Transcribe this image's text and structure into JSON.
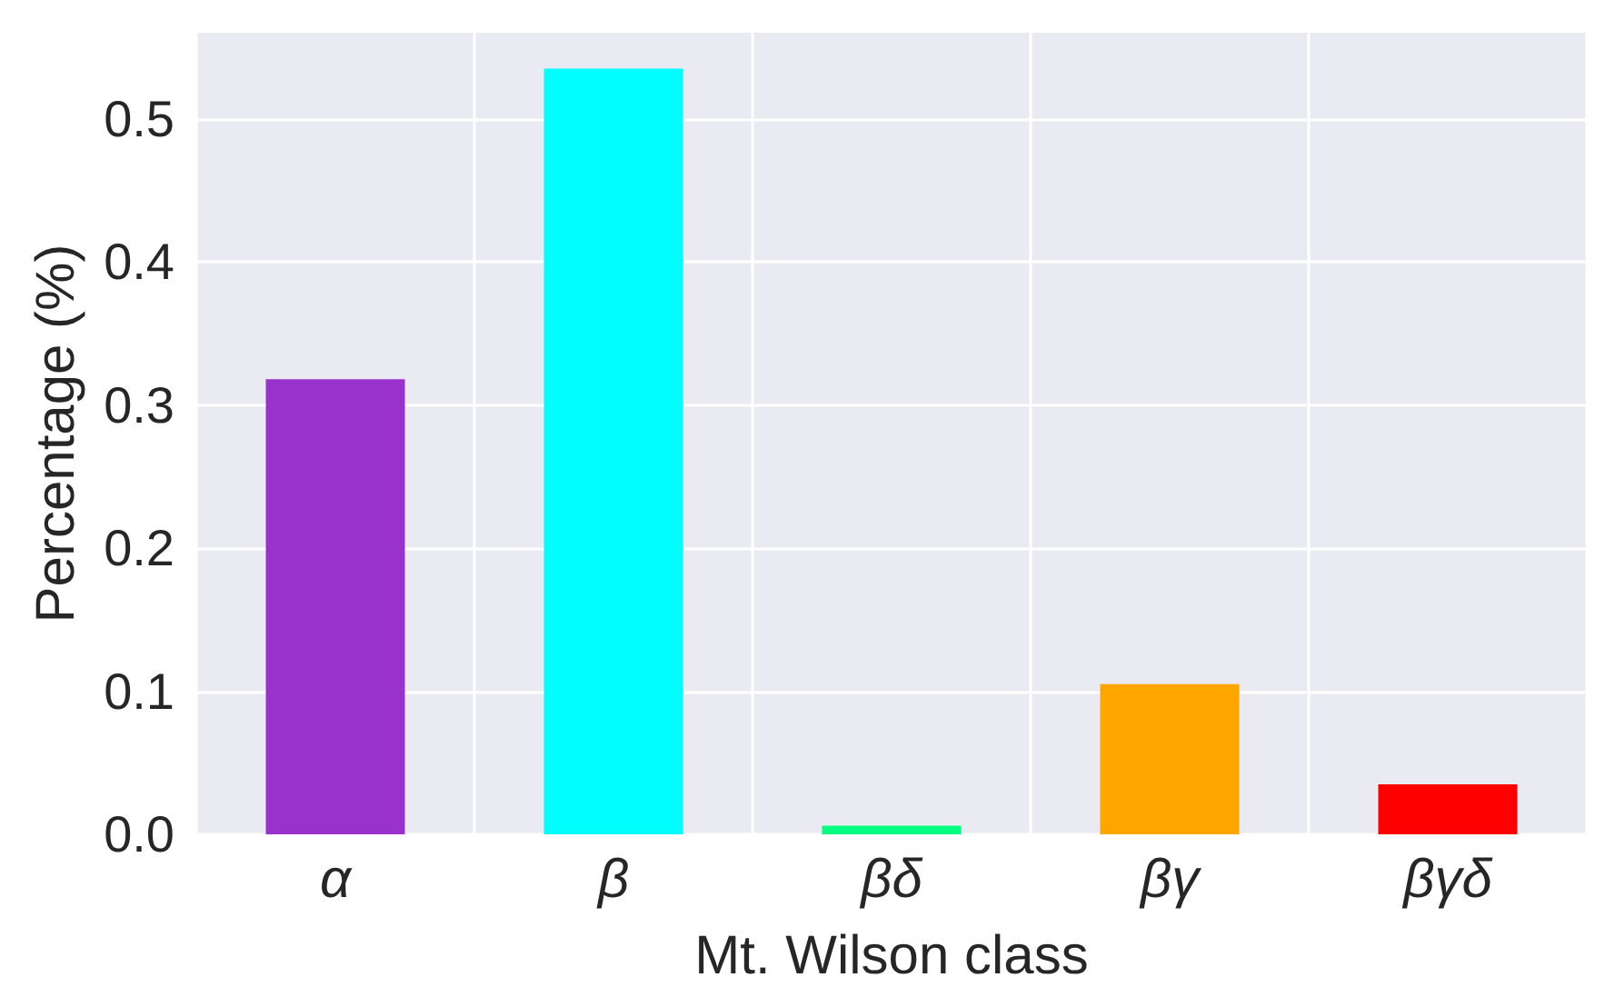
{
  "chart_data": {
    "type": "bar",
    "xlabel": "Mt. Wilson class",
    "ylabel": "Percentage (%)",
    "categories": [
      "α",
      "β",
      "βδ",
      "βγ",
      "βγδ"
    ],
    "values": [
      0.318,
      0.535,
      0.006,
      0.105,
      0.035
    ],
    "colors": [
      "#9932cc",
      "#00ffff",
      "#00ff7f",
      "#ffa500",
      "#ff0000"
    ],
    "ylim": [
      0,
      0.56
    ],
    "yticks": [
      {
        "value": 0,
        "label": "0.0"
      },
      0.1,
      0.2,
      0.3,
      0.4,
      0.5
    ],
    "grid": true
  }
}
